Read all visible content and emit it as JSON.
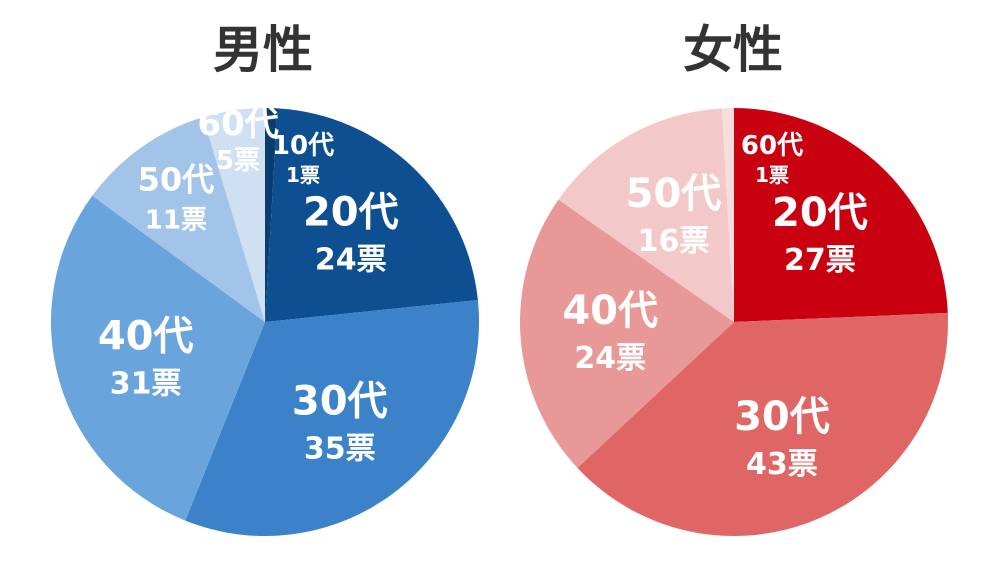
{
  "chart_data": [
    {
      "type": "pie",
      "title": "男性",
      "categories": [
        "10代",
        "20代",
        "30代",
        "40代",
        "50代",
        "60代"
      ],
      "values": [
        1,
        24,
        35,
        31,
        11,
        5
      ],
      "value_labels": [
        "1票",
        "24票",
        "35票",
        "31票",
        "11票",
        "5票"
      ],
      "start_angle": "12 o'clock",
      "direction": "clockwise",
      "colors": [
        "#0a3d72",
        "#0d4f90",
        "#3b82c8",
        "#6aa4dc",
        "#a2c4e8",
        "#cfe0f3"
      ]
    },
    {
      "type": "pie",
      "title": "女性",
      "categories": [
        "20代",
        "30代",
        "40代",
        "50代",
        "60代"
      ],
      "values": [
        27,
        43,
        24,
        16,
        1
      ],
      "value_labels": [
        "27票",
        "43票",
        "24票",
        "16票",
        "1票"
      ],
      "start_angle": "12 o'clock",
      "direction": "clockwise",
      "colors": [
        "#c8000f",
        "#e06565",
        "#e99898",
        "#f2c8c8",
        "#f7dede"
      ]
    }
  ]
}
